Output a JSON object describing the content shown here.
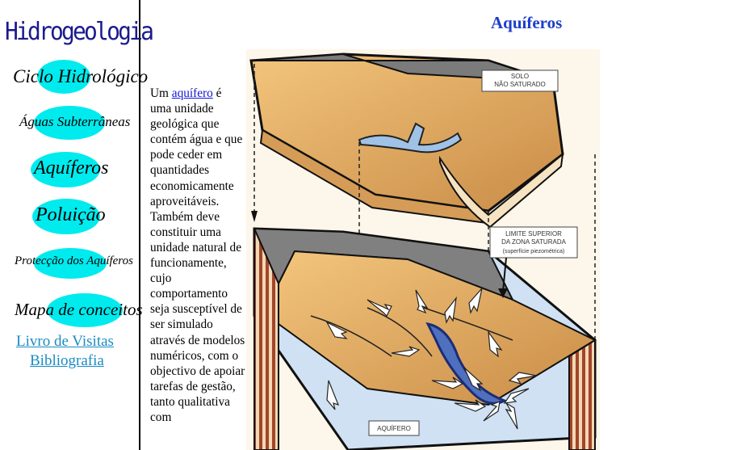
{
  "sidebar": {
    "site_title": "Hidrogeologia",
    "nav": {
      "ciclo": "Ciclo Hidrológico",
      "aguas": "Águas Subterrâneas",
      "aquiferos": "Aquíferos",
      "poluicao": "Poluição",
      "proteccao": "Protecção dos Aquíferos",
      "mapa": "Mapa de conceitos"
    },
    "links": {
      "livro": "Livro de Visitas",
      "bibliografia": "Bibliografia"
    }
  },
  "main": {
    "title": "Aquíferos",
    "intro_prefix": "Um ",
    "intro_link": "aquífero",
    "intro_text": " é uma unidade geológica que contém água e que pode ceder em quantidades economicamente aproveitáveis. Também deve constituir uma unidade natural de funcionamente, cujo comportamento seja susceptível de ser simulado através de modelos numéricos, com o objectivo de apoiar tarefas de gestão, tanto qualitativa com"
  },
  "figure": {
    "label_solo_1": "SOLO",
    "label_solo_2": "NÃO SATURADO",
    "label_limite_1": "LIMITE SUPERIOR",
    "label_limite_2": "DA ZONA SATURADA",
    "label_limite_3": "(superfície piezométrica)",
    "label_aquifero": "AQUÍFERO"
  },
  "colors": {
    "nav_highlight": "#00ebee",
    "title_blue": "#1d3ec8",
    "site_title": "#1a1a8c",
    "side_link": "#1a8bc4"
  }
}
